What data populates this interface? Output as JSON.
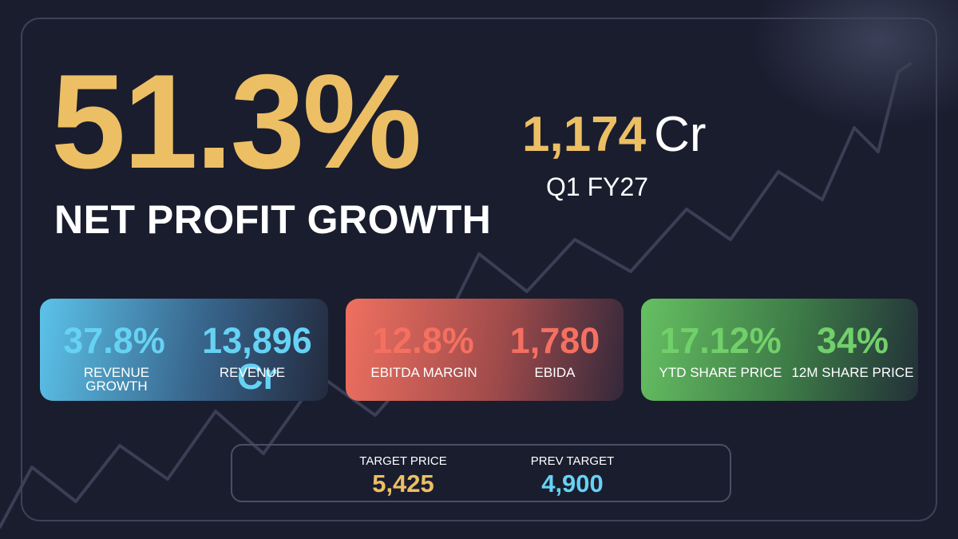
{
  "hero": {
    "value": "51.3%",
    "label": "NET PROFIT GROWTH"
  },
  "profit": {
    "value": "1,174",
    "unit": "Cr",
    "period": "Q1 FY27"
  },
  "cards": [
    {
      "color": "#5cc3ea",
      "metrics": [
        {
          "value": "37.8%",
          "label": "REVENUE GROWTH"
        },
        {
          "value": "13,896 Cr",
          "label": "REVENUE"
        }
      ]
    },
    {
      "color": "#ef7060",
      "metrics": [
        {
          "value": "12.8%",
          "label": "EBITDA MARGIN"
        },
        {
          "value": "1,780",
          "label": "EBIDA"
        }
      ]
    },
    {
      "color": "#66c062",
      "metrics": [
        {
          "value": "17.12%",
          "label": "YTD SHARE PRICE"
        },
        {
          "value": "34%",
          "label": "12M SHARE PRICE"
        }
      ]
    }
  ],
  "targets": {
    "target_price": {
      "label": "TARGET PRICE",
      "value": "5,425"
    },
    "prev_target": {
      "label": "PREV TARGET",
      "value": "4,900"
    }
  },
  "colors": {
    "background": "#1a1d2e",
    "accent_gold": "#ecbf64",
    "accent_cyan": "#66d2f4",
    "accent_red": "#f57060",
    "accent_green": "#72d06a"
  }
}
